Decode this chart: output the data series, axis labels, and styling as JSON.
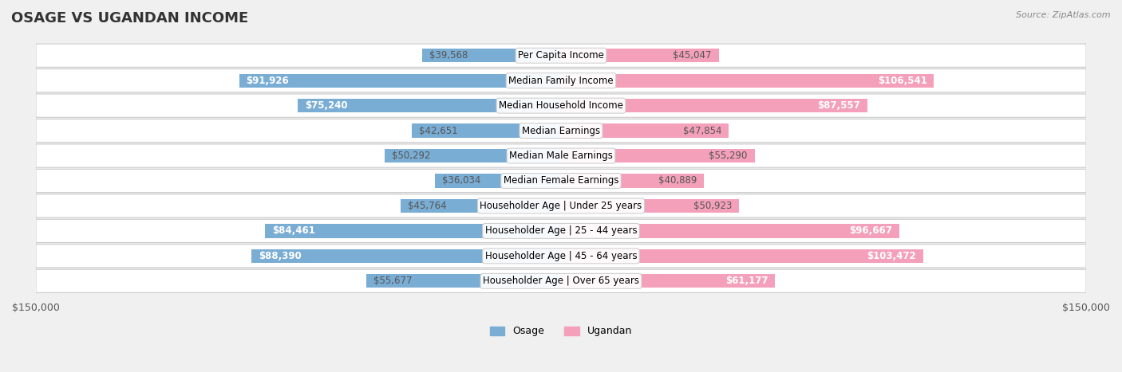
{
  "title": "OSAGE VS UGANDAN INCOME",
  "source": "Source: ZipAtlas.com",
  "categories": [
    "Per Capita Income",
    "Median Family Income",
    "Median Household Income",
    "Median Earnings",
    "Median Male Earnings",
    "Median Female Earnings",
    "Householder Age | Under 25 years",
    "Householder Age | 25 - 44 years",
    "Householder Age | 45 - 64 years",
    "Householder Age | Over 65 years"
  ],
  "osage_values": [
    39568,
    91926,
    75240,
    42651,
    50292,
    36034,
    45764,
    84461,
    88390,
    55677
  ],
  "ugandan_values": [
    45047,
    106541,
    87557,
    47854,
    55290,
    40889,
    50923,
    96667,
    103472,
    61177
  ],
  "osage_labels": [
    "$39,568",
    "$91,926",
    "$75,240",
    "$42,651",
    "$50,292",
    "$36,034",
    "$45,764",
    "$84,461",
    "$88,390",
    "$55,677"
  ],
  "ugandan_labels": [
    "$45,047",
    "$106,541",
    "$87,557",
    "$47,854",
    "$55,290",
    "$40,889",
    "$50,923",
    "$96,667",
    "$103,472",
    "$61,177"
  ],
  "osage_color": "#7aadd4",
  "ugandan_color": "#f4a0bb",
  "osage_color_strong": "#5b9fd0",
  "ugandan_color_strong": "#f080a0",
  "max_value": 150000,
  "background_color": "#f0f0f0",
  "bar_bg_color": "#e8e8e8",
  "title_fontsize": 13,
  "label_fontsize": 8.5,
  "category_fontsize": 8.5
}
